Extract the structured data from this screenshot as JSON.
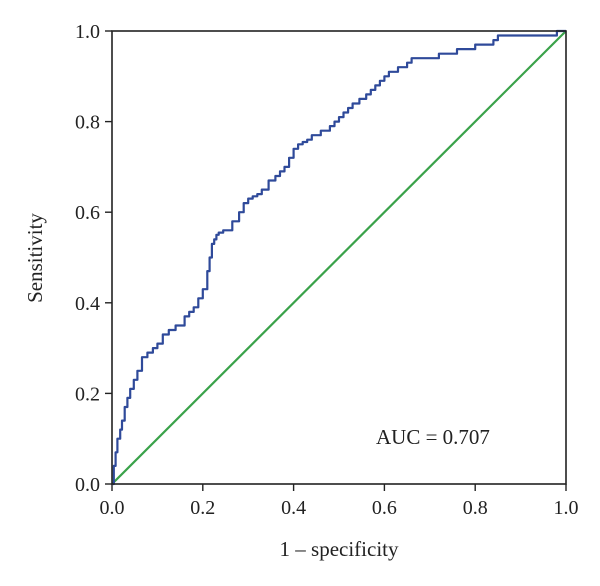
{
  "chart_data": {
    "type": "line",
    "title": "",
    "xlabel": "1 – specificity",
    "ylabel": "Sensitivity",
    "xlim": [
      0,
      1
    ],
    "ylim": [
      0,
      1
    ],
    "x_ticks": [
      "0.0",
      "0.2",
      "0.4",
      "0.6",
      "0.8",
      "1.0"
    ],
    "y_ticks": [
      "0.0",
      "0.2",
      "0.4",
      "0.6",
      "0.8",
      "1.0"
    ],
    "grid": false,
    "legend": "none",
    "annotation": "AUC = 0.707",
    "colors": {
      "roc": "#2f4a9a",
      "reference": "#3aa24a",
      "axis": "#222222"
    },
    "series": [
      {
        "x": [
          0,
          0.004,
          0.004,
          0.008,
          0.008,
          0.012,
          0.012,
          0.018,
          0.018,
          0.022,
          0.022,
          0.028,
          0.028,
          0.034,
          0.034,
          0.04,
          0.04,
          0.048,
          0.048,
          0.056,
          0.056,
          0.066,
          0.066,
          0.078,
          0.078,
          0.09,
          0.09,
          0.1,
          0.1,
          0.112,
          0.112,
          0.125,
          0.125,
          0.14,
          0.14,
          0.16,
          0.16,
          0.17,
          0.17,
          0.18,
          0.18,
          0.19,
          0.19,
          0.2,
          0.2,
          0.21,
          0.21,
          0.215,
          0.215,
          0.22,
          0.22,
          0.225,
          0.225,
          0.23,
          0.23,
          0.235,
          0.235,
          0.245,
          0.245,
          0.265,
          0.265,
          0.28,
          0.28,
          0.29,
          0.29,
          0.3,
          0.3,
          0.31,
          0.31,
          0.32,
          0.32,
          0.33,
          0.33,
          0.345,
          0.345,
          0.36,
          0.36,
          0.37,
          0.37,
          0.38,
          0.38,
          0.39,
          0.39,
          0.4,
          0.4,
          0.41,
          0.41,
          0.42,
          0.42,
          0.43,
          0.43,
          0.44,
          0.44,
          0.46,
          0.46,
          0.48,
          0.48,
          0.49,
          0.49,
          0.5,
          0.5,
          0.51,
          0.51,
          0.52,
          0.52,
          0.53,
          0.53,
          0.545,
          0.545,
          0.56,
          0.56,
          0.57,
          0.57,
          0.58,
          0.58,
          0.59,
          0.59,
          0.6,
          0.6,
          0.61,
          0.61,
          0.63,
          0.63,
          0.65,
          0.65,
          0.66,
          0.66,
          0.72,
          0.72,
          0.76,
          0.76,
          0.8,
          0.8,
          0.84,
          0.84,
          0.85,
          0.85,
          0.98,
          0.98,
          1.0
        ],
        "y": [
          0,
          0,
          0.04,
          0.04,
          0.07,
          0.07,
          0.1,
          0.1,
          0.12,
          0.12,
          0.14,
          0.14,
          0.17,
          0.17,
          0.19,
          0.19,
          0.21,
          0.21,
          0.23,
          0.23,
          0.25,
          0.25,
          0.28,
          0.28,
          0.29,
          0.29,
          0.3,
          0.3,
          0.31,
          0.31,
          0.33,
          0.33,
          0.34,
          0.34,
          0.35,
          0.35,
          0.37,
          0.37,
          0.38,
          0.38,
          0.39,
          0.39,
          0.41,
          0.41,
          0.43,
          0.43,
          0.47,
          0.47,
          0.5,
          0.5,
          0.53,
          0.53,
          0.54,
          0.54,
          0.55,
          0.55,
          0.555,
          0.555,
          0.56,
          0.56,
          0.58,
          0.58,
          0.6,
          0.6,
          0.62,
          0.62,
          0.63,
          0.63,
          0.635,
          0.635,
          0.64,
          0.64,
          0.65,
          0.65,
          0.67,
          0.67,
          0.68,
          0.68,
          0.69,
          0.69,
          0.7,
          0.7,
          0.72,
          0.72,
          0.74,
          0.74,
          0.75,
          0.75,
          0.755,
          0.755,
          0.76,
          0.76,
          0.77,
          0.77,
          0.78,
          0.78,
          0.79,
          0.79,
          0.8,
          0.8,
          0.81,
          0.81,
          0.82,
          0.82,
          0.83,
          0.83,
          0.84,
          0.84,
          0.85,
          0.85,
          0.86,
          0.86,
          0.87,
          0.87,
          0.88,
          0.88,
          0.89,
          0.89,
          0.9,
          0.9,
          0.91,
          0.91,
          0.92,
          0.92,
          0.93,
          0.93,
          0.94,
          0.94,
          0.95,
          0.95,
          0.96,
          0.96,
          0.97,
          0.97,
          0.98,
          0.98,
          0.99,
          0.99,
          1.0,
          1.0
        ]
      },
      {
        "x": [
          0,
          1
        ],
        "y": [
          0,
          1
        ]
      }
    ]
  }
}
